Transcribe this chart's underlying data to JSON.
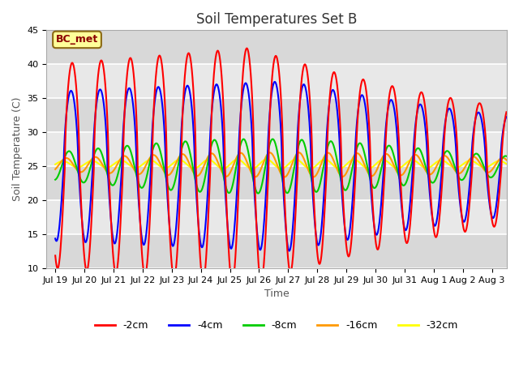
{
  "title": "Soil Temperatures Set B",
  "xlabel": "Time",
  "ylabel": "Soil Temperature (C)",
  "ylim": [
    10,
    45
  ],
  "xlim": [
    -0.3,
    15.5
  ],
  "xtick_labels": [
    "Jul 19",
    "Jul 20",
    "Jul 21",
    "Jul 22",
    "Jul 23",
    "Jul 24",
    "Jul 25",
    "Jul 26",
    "Jul 27",
    "Jul 28",
    "Jul 29",
    "Jul 30",
    "Jul 31",
    "Aug 1",
    "Aug 2",
    "Aug 3"
  ],
  "xtick_positions": [
    0,
    1,
    2,
    3,
    4,
    5,
    6,
    7,
    8,
    9,
    10,
    11,
    12,
    13,
    14,
    15
  ],
  "ytick_values": [
    10,
    15,
    20,
    25,
    30,
    35,
    40,
    45
  ],
  "series": {
    "-2cm": {
      "color": "#ff0000"
    },
    "-4cm": {
      "color": "#0000ff"
    },
    "-8cm": {
      "color": "#00cc00"
    },
    "-16cm": {
      "color": "#ff9900"
    },
    "-32cm": {
      "color": "#ffff00"
    }
  },
  "annotation_text": "BC_met",
  "background_color": "#ffffff",
  "plot_bg_color": "#e8e8e8",
  "title_fontsize": 12,
  "axis_label_fontsize": 9,
  "tick_fontsize": 8,
  "linewidth": 1.5
}
